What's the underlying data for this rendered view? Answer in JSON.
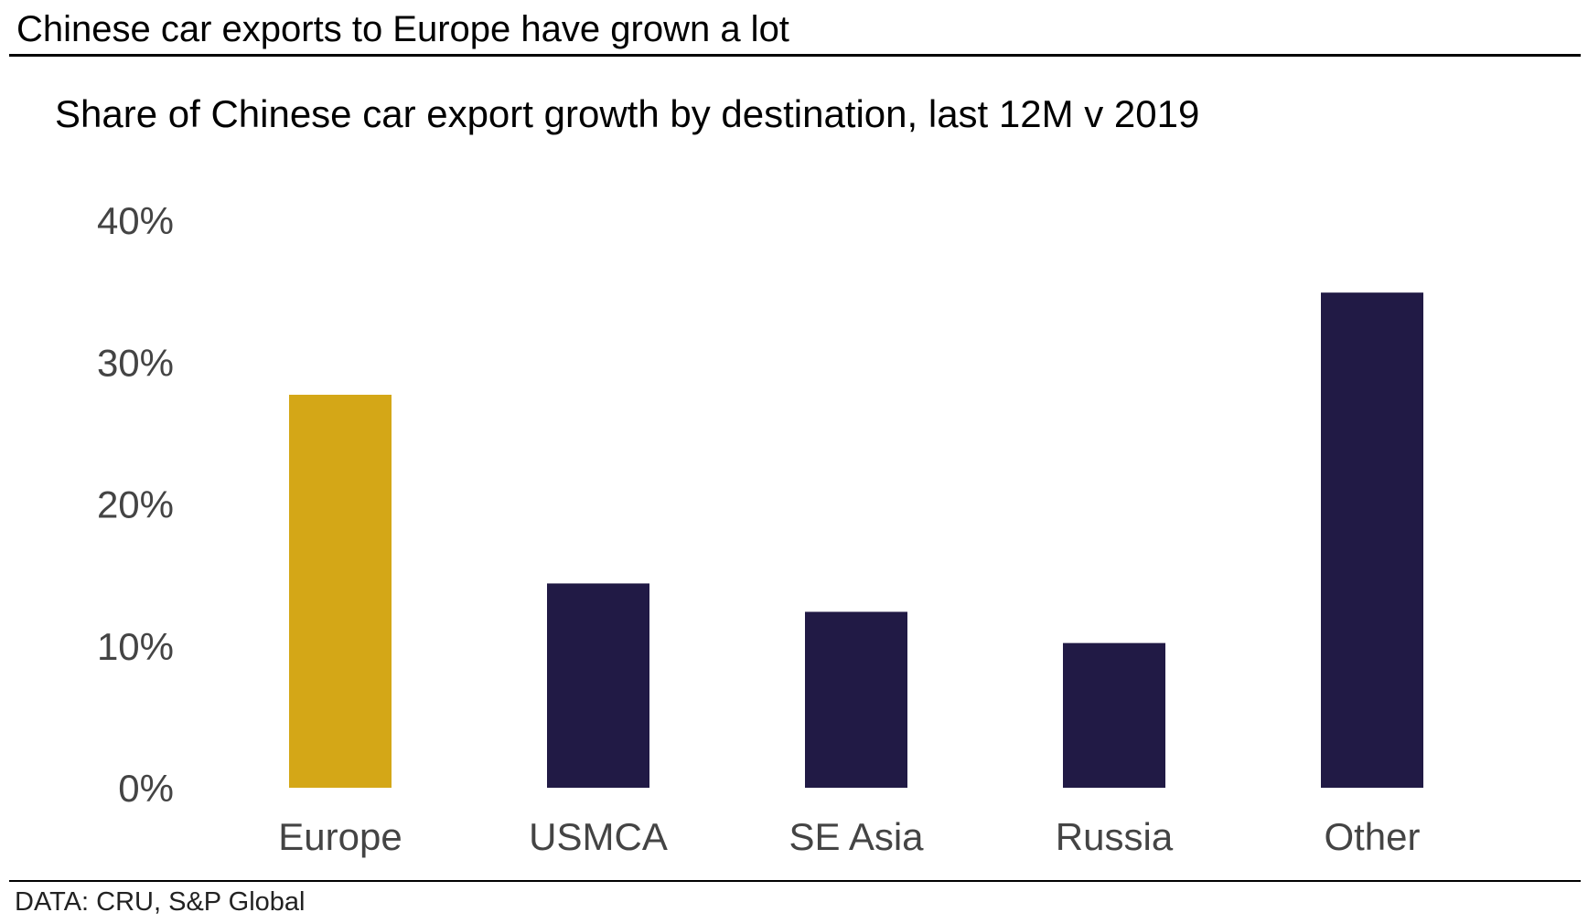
{
  "header": {
    "title": "Chinese car exports to Europe have grown a lot"
  },
  "footer": {
    "source": "DATA: CRU, S&P Global"
  },
  "chart_data": {
    "type": "bar",
    "title": "Share of Chinese car export growth by destination, last 12M v 2019",
    "xlabel": "",
    "ylabel": "",
    "categories": [
      "Europe",
      "USMCA",
      "SE Asia",
      "Russia",
      "Other"
    ],
    "values": [
      27.7,
      14.4,
      12.4,
      10.2,
      34.9
    ],
    "unit": "%",
    "ylim": [
      0,
      40
    ],
    "yticks": [
      0,
      10,
      20,
      30,
      40
    ],
    "ytick_labels": [
      "0%",
      "10%",
      "20%",
      "30%",
      "40%"
    ],
    "grid": false,
    "legend": "none",
    "colors": {
      "highlight": "#D4A717",
      "default": "#211A45",
      "tick_text": "#444444"
    },
    "highlight_category": "Europe"
  }
}
